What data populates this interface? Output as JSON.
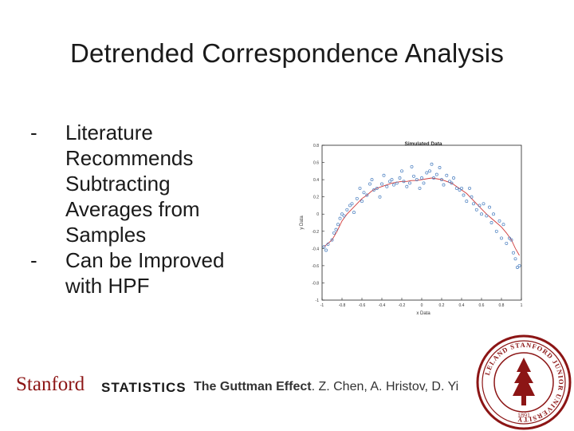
{
  "slide": {
    "title": "Detrended Correspondence Analysis",
    "bullets": [
      {
        "dash": "-",
        "lines": [
          "Literature",
          "Recommends",
          "Subtracting",
          "Averages from",
          "Samples"
        ]
      },
      {
        "dash": "-",
        "lines": [
          "Can be Improved",
          "with HPF"
        ]
      }
    ]
  },
  "chart_data": {
    "type": "scatter",
    "title": "Simulated Data",
    "xlabel": "x Data",
    "ylabel": "y Data",
    "xlim": [
      -1,
      1
    ],
    "ylim": [
      -1,
      0.8
    ],
    "xticks": [
      "-1",
      "-0.8",
      "-0.6",
      "-0.4",
      "-0.2",
      "0",
      "0.2",
      "0.4",
      "0.6",
      "0.8",
      "1"
    ],
    "yticks": [
      "0.8",
      "0.6",
      "0.4",
      "0.2",
      "0",
      "-0.2",
      "-0.4",
      "-0.6",
      "-0.8",
      "-1"
    ],
    "points_color": "#4a7fc0",
    "line_color": "#d03a3a",
    "series": [
      {
        "kind": "points",
        "x": [
          -0.98,
          -0.96,
          -0.94,
          -0.9,
          -0.88,
          -0.86,
          -0.84,
          -0.82,
          -0.8,
          -0.78,
          -0.75,
          -0.72,
          -0.7,
          -0.68,
          -0.65,
          -0.62,
          -0.6,
          -0.58,
          -0.55,
          -0.52,
          -0.5,
          -0.48,
          -0.45,
          -0.42,
          -0.4,
          -0.38,
          -0.35,
          -0.32,
          -0.3,
          -0.28,
          -0.25,
          -0.22,
          -0.2,
          -0.18,
          -0.15,
          -0.12,
          -0.1,
          -0.08,
          -0.05,
          -0.02,
          0.0,
          0.02,
          0.05,
          0.08,
          0.1,
          0.12,
          0.15,
          0.18,
          0.2,
          0.22,
          0.25,
          0.28,
          0.3,
          0.32,
          0.35,
          0.38,
          0.4,
          0.42,
          0.45,
          0.48,
          0.5,
          0.52,
          0.55,
          0.58,
          0.6,
          0.62,
          0.65,
          0.68,
          0.7,
          0.72,
          0.75,
          0.78,
          0.8,
          0.82,
          0.85,
          0.88,
          0.9,
          0.92,
          0.94,
          0.96,
          0.98
        ],
        "y": [
          -0.38,
          -0.42,
          -0.35,
          -0.3,
          -0.22,
          -0.18,
          -0.12,
          -0.05,
          0.0,
          -0.02,
          0.05,
          0.1,
          0.12,
          0.02,
          0.18,
          0.3,
          0.15,
          0.25,
          0.22,
          0.35,
          0.4,
          0.28,
          0.3,
          0.2,
          0.35,
          0.45,
          0.32,
          0.38,
          0.4,
          0.34,
          0.36,
          0.42,
          0.5,
          0.38,
          0.32,
          0.36,
          0.55,
          0.44,
          0.4,
          0.3,
          0.42,
          0.36,
          0.48,
          0.5,
          0.58,
          0.42,
          0.46,
          0.54,
          0.4,
          0.34,
          0.45,
          0.38,
          0.36,
          0.42,
          0.3,
          0.28,
          0.3,
          0.22,
          0.15,
          0.3,
          0.2,
          0.12,
          0.05,
          0.1,
          0.0,
          0.12,
          -0.02,
          0.08,
          -0.1,
          0.0,
          -0.2,
          -0.08,
          -0.28,
          -0.12,
          -0.34,
          -0.28,
          -0.3,
          -0.45,
          -0.52,
          -0.62,
          -0.6
        ]
      },
      {
        "kind": "line",
        "x": [
          -0.98,
          -0.9,
          -0.85,
          -0.8,
          -0.75,
          -0.7,
          -0.65,
          -0.6,
          -0.55,
          -0.5,
          -0.45,
          -0.4,
          -0.35,
          -0.3,
          -0.25,
          -0.2,
          -0.15,
          -0.1,
          -0.05,
          0.0,
          0.05,
          0.1,
          0.15,
          0.2,
          0.25,
          0.3,
          0.35,
          0.4,
          0.45,
          0.5,
          0.55,
          0.6,
          0.65,
          0.7,
          0.75,
          0.8,
          0.85,
          0.9,
          0.94,
          0.98
        ],
        "y": [
          -0.38,
          -0.3,
          -0.2,
          -0.08,
          0.0,
          0.06,
          0.12,
          0.18,
          0.22,
          0.27,
          0.3,
          0.32,
          0.34,
          0.36,
          0.37,
          0.38,
          0.38,
          0.39,
          0.39,
          0.4,
          0.41,
          0.42,
          0.41,
          0.4,
          0.38,
          0.36,
          0.32,
          0.28,
          0.24,
          0.18,
          0.12,
          0.06,
          0.0,
          -0.05,
          -0.1,
          -0.15,
          -0.22,
          -0.3,
          -0.4,
          -0.48
        ]
      }
    ]
  },
  "footer": {
    "logo_text": "Stanford",
    "dept_text": "STATISTICS",
    "credit_bold": "The Guttman Effect",
    "credit_rest": ". Z. Chen, A. Hristov, D. Yi",
    "brand_color": "#8c1515"
  },
  "seal": {
    "text": "LELAND STANFORD JUNIOR UNIVERSITY",
    "year": "1891"
  }
}
